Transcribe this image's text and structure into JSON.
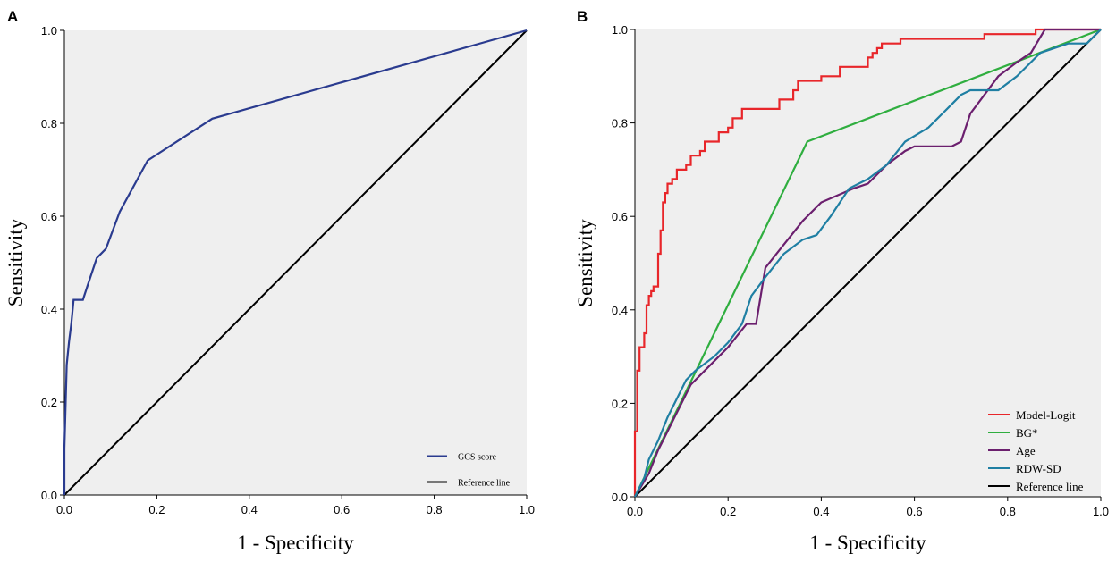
{
  "panels": [
    {
      "letter": "A",
      "xlabel": "1 - Specificity",
      "ylabel": "Sensitivity",
      "xticks": [
        "0.0",
        "0.2",
        "0.4",
        "0.6",
        "0.8",
        "1.0"
      ],
      "yticks": [
        "0.0",
        "0.2",
        "0.4",
        "0.6",
        "0.8",
        "1.0"
      ],
      "background": "#efefef"
    },
    {
      "letter": "B",
      "xlabel": "1 - Specificity",
      "ylabel": "Sensitivity",
      "xticks": [
        "0.0",
        "0.2",
        "0.4",
        "0.6",
        "0.8",
        "1.0"
      ],
      "yticks": [
        "0.0",
        "0.2",
        "0.4",
        "0.6",
        "0.8",
        "1.0"
      ],
      "background": "#efefef"
    }
  ],
  "chart_data": [
    {
      "type": "line",
      "panel": "A",
      "title": "",
      "xlabel": "1 - Specificity",
      "ylabel": "Sensitivity",
      "xlim": [
        0,
        1
      ],
      "ylim": [
        0,
        1
      ],
      "grid": false,
      "legend_position": "bottom-right",
      "series": [
        {
          "name": "GCS score",
          "color": "#2a3b8f",
          "x": [
            0,
            0,
            0.005,
            0.01,
            0.015,
            0.02,
            0.04,
            0.05,
            0.07,
            0.09,
            0.12,
            0.18,
            0.32,
            1.0
          ],
          "y": [
            0,
            0.1,
            0.28,
            0.33,
            0.37,
            0.42,
            0.42,
            0.45,
            0.51,
            0.53,
            0.61,
            0.72,
            0.81,
            1.0
          ]
        },
        {
          "name": "Reference line",
          "color": "#000000",
          "x": [
            0,
            1
          ],
          "y": [
            0,
            1
          ]
        }
      ]
    },
    {
      "type": "line",
      "panel": "B",
      "title": "",
      "xlabel": "1 - Specificity",
      "ylabel": "Sensitivity",
      "xlim": [
        0,
        1
      ],
      "ylim": [
        0,
        1
      ],
      "grid": false,
      "legend_position": "bottom-right",
      "series": [
        {
          "name": "Model-Logit",
          "color": "#e8262a",
          "x": [
            0,
            0,
            0.005,
            0.005,
            0.01,
            0.01,
            0.02,
            0.02,
            0.025,
            0.025,
            0.03,
            0.03,
            0.035,
            0.035,
            0.04,
            0.04,
            0.05,
            0.05,
            0.055,
            0.055,
            0.06,
            0.06,
            0.065,
            0.065,
            0.07,
            0.07,
            0.08,
            0.08,
            0.09,
            0.09,
            0.11,
            0.11,
            0.12,
            0.12,
            0.14,
            0.14,
            0.15,
            0.15,
            0.18,
            0.18,
            0.2,
            0.2,
            0.21,
            0.21,
            0.23,
            0.23,
            0.31,
            0.31,
            0.34,
            0.34,
            0.35,
            0.35,
            0.4,
            0.4,
            0.44,
            0.44,
            0.5,
            0.5,
            0.51,
            0.51,
            0.52,
            0.52,
            0.53,
            0.53,
            0.57,
            0.57,
            0.75,
            0.75,
            0.86,
            0.86,
            1.0
          ],
          "y": [
            0,
            0.14,
            0.14,
            0.27,
            0.27,
            0.32,
            0.32,
            0.35,
            0.35,
            0.41,
            0.41,
            0.43,
            0.43,
            0.44,
            0.44,
            0.45,
            0.45,
            0.52,
            0.52,
            0.57,
            0.57,
            0.63,
            0.63,
            0.65,
            0.65,
            0.67,
            0.67,
            0.68,
            0.68,
            0.7,
            0.7,
            0.71,
            0.71,
            0.73,
            0.73,
            0.74,
            0.74,
            0.76,
            0.76,
            0.78,
            0.78,
            0.79,
            0.79,
            0.81,
            0.81,
            0.83,
            0.83,
            0.85,
            0.85,
            0.87,
            0.87,
            0.89,
            0.89,
            0.9,
            0.9,
            0.92,
            0.92,
            0.94,
            0.94,
            0.95,
            0.95,
            0.96,
            0.96,
            0.97,
            0.97,
            0.98,
            0.98,
            0.99,
            0.99,
            1.0,
            1.0
          ]
        },
        {
          "name": "BG*",
          "color": "#2fae3f",
          "x": [
            0,
            0.37,
            1.0
          ],
          "y": [
            0,
            0.76,
            1.0
          ]
        },
        {
          "name": "Age",
          "color": "#6b1f6e",
          "x": [
            0,
            0.03,
            0.05,
            0.06,
            0.08,
            0.1,
            0.12,
            0.15,
            0.2,
            0.24,
            0.26,
            0.27,
            0.28,
            0.32,
            0.36,
            0.4,
            0.47,
            0.5,
            0.54,
            0.58,
            0.6,
            0.68,
            0.7,
            0.72,
            0.75,
            0.78,
            0.82,
            0.85,
            0.88,
            1.0
          ],
          "y": [
            0,
            0.05,
            0.1,
            0.12,
            0.16,
            0.2,
            0.24,
            0.27,
            0.32,
            0.37,
            0.37,
            0.43,
            0.49,
            0.54,
            0.59,
            0.63,
            0.66,
            0.67,
            0.71,
            0.74,
            0.75,
            0.75,
            0.76,
            0.82,
            0.86,
            0.9,
            0.93,
            0.95,
            1.0,
            1.0
          ]
        },
        {
          "name": "RDW-SD",
          "color": "#1f7fa3",
          "x": [
            0,
            0.02,
            0.03,
            0.05,
            0.07,
            0.09,
            0.11,
            0.13,
            0.17,
            0.2,
            0.23,
            0.25,
            0.28,
            0.32,
            0.36,
            0.39,
            0.42,
            0.46,
            0.5,
            0.54,
            0.58,
            0.63,
            0.66,
            0.68,
            0.7,
            0.72,
            0.78,
            0.82,
            0.87,
            0.93,
            0.97,
            1.0
          ],
          "y": [
            0,
            0.04,
            0.08,
            0.12,
            0.17,
            0.21,
            0.25,
            0.27,
            0.3,
            0.33,
            0.37,
            0.43,
            0.47,
            0.52,
            0.55,
            0.56,
            0.6,
            0.66,
            0.68,
            0.71,
            0.76,
            0.79,
            0.82,
            0.84,
            0.86,
            0.87,
            0.87,
            0.9,
            0.95,
            0.97,
            0.97,
            1.0
          ]
        },
        {
          "name": "Reference line",
          "color": "#000000",
          "x": [
            0,
            1
          ],
          "y": [
            0,
            1
          ]
        }
      ]
    }
  ]
}
